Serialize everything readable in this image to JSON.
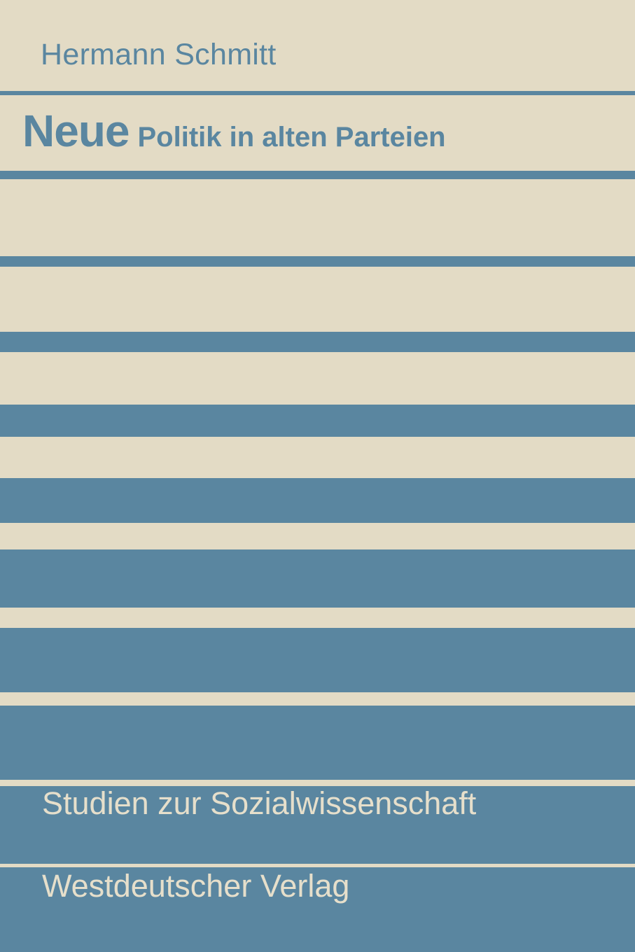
{
  "cover": {
    "author": "Hermann Schmitt",
    "title_main": "Neue",
    "title_rest": "Politik in alten Parteien",
    "series": "Studien zur Sozialwissenschaft",
    "publisher": "Westdeutscher Verlag"
  },
  "colors": {
    "background": "#e3dbc5",
    "stripes": "#5a86a0",
    "light_text": "#e6dfcb"
  }
}
